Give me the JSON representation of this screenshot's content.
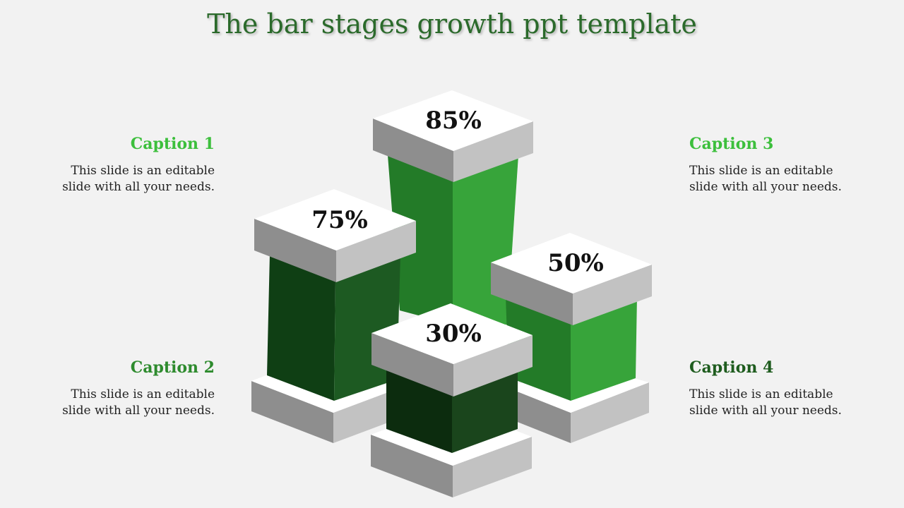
{
  "title": "The bar stages growth ppt template",
  "captions": [
    {
      "heading": "Caption 1",
      "text_line1": "This slide is an editable",
      "text_line2": "slide with all your needs.",
      "color": "#3cbf3c"
    },
    {
      "heading": "Caption 2",
      "text_line1": "This slide is an editable",
      "text_line2": "slide with all your needs.",
      "color": "#2e8b2e"
    },
    {
      "heading": "Caption 3",
      "text_line1": "This slide is an editable",
      "text_line2": "slide with all your needs.",
      "color": "#3cbf3c"
    },
    {
      "heading": "Caption 4",
      "text_line1": "This slide is an editable",
      "text_line2": "slide with all your needs.",
      "color": "#1e5c1e"
    }
  ],
  "bars": [
    {
      "label": "75%",
      "value": 75
    },
    {
      "label": "85%",
      "value": 85
    },
    {
      "label": "50%",
      "value": 50
    },
    {
      "label": "30%",
      "value": 30
    }
  ],
  "colors": {
    "bar1_left": "#0f3f14",
    "bar1_right": "#1d5a22",
    "bar2_left": "#237b28",
    "bar2_right": "#37a43a",
    "bar3_left": "#237b28",
    "bar3_right": "#37a43a",
    "bar4_left": "#0c2c0e",
    "bar4_right": "#1a451c",
    "cap_top": "#ffffff",
    "cap_left": "#8e8e8e",
    "cap_right": "#c2c2c2"
  }
}
